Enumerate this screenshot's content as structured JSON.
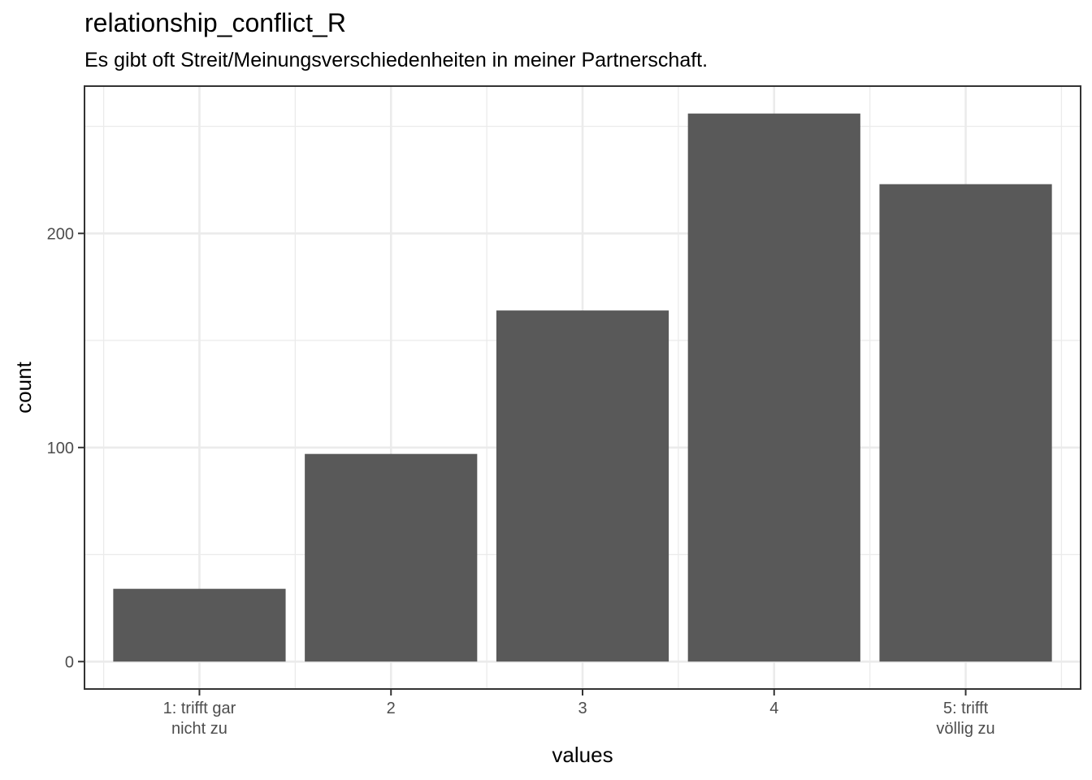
{
  "chart_data": {
    "type": "bar",
    "title": "relationship_conflict_R",
    "subtitle": "Es gibt oft Streit/Meinungsverschiedenheiten in meiner Partnerschaft.",
    "xlabel": "values",
    "ylabel": "count",
    "categories": [
      "1: trifft gar nicht zu",
      "2",
      "3",
      "4",
      "5: trifft völlig zu"
    ],
    "category_lines": [
      [
        "1: trifft gar",
        "nicht zu"
      ],
      [
        "2"
      ],
      [
        "3"
      ],
      [
        "4"
      ],
      [
        "5: trifft",
        "völlig zu"
      ]
    ],
    "values": [
      34,
      97,
      164,
      256,
      223
    ],
    "yticks": [
      0,
      100,
      200
    ],
    "ylim": [
      -12.8,
      268.8
    ],
    "grid": true,
    "bar_color": "#595959",
    "grid_color": "#ebebeb",
    "panel_border_color": "#333333"
  }
}
